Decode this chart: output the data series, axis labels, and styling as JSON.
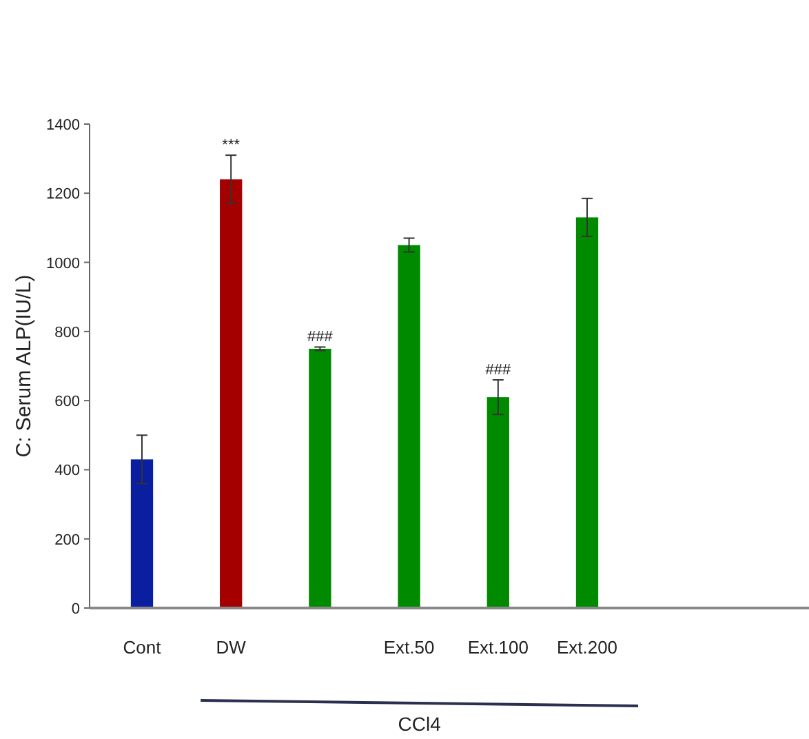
{
  "chart_data": {
    "type": "bar",
    "ylabel": "C: Serum ALP(IU/L)",
    "categories": [
      "Cont",
      "DW",
      null,
      "Ext.50",
      "Ext.100",
      "Ext.200"
    ],
    "values": [
      430,
      1240,
      750,
      1050,
      610,
      1130
    ],
    "errors": [
      70,
      70,
      5,
      20,
      50,
      55
    ],
    "colors": [
      "#0a1fa0",
      "#a50000",
      "#008a00",
      "#008a00",
      "#008a00",
      "#008a00"
    ],
    "ylim": [
      0,
      1400
    ],
    "yticks": [
      0,
      200,
      400,
      600,
      800,
      1000,
      1200,
      1400
    ],
    "grid": false,
    "annotations": [
      {
        "text": "***",
        "x": "DW",
        "y": 1310
      },
      {
        "text": "###",
        "y": 755
      },
      {
        "text": "###",
        "x": "Ext.100",
        "y": 660
      },
      "CCl4"
    ]
  }
}
